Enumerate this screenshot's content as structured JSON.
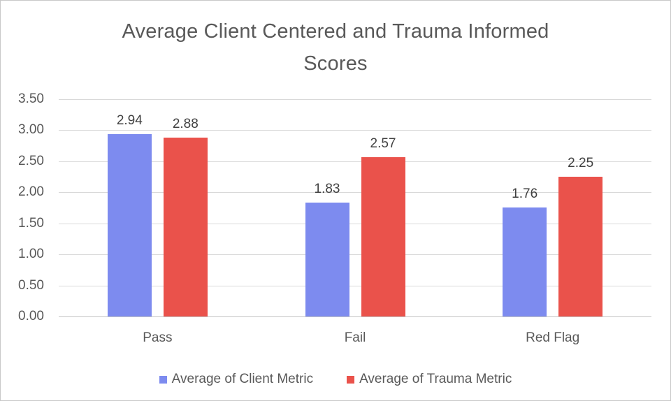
{
  "chart_data": {
    "type": "bar",
    "title": "Average Client Centered and Trauma Informed Scores",
    "categories": [
      "Pass",
      "Fail",
      "Red Flag"
    ],
    "series": [
      {
        "name": "Average of Client Metric",
        "color": "#7D8BEF",
        "values": [
          2.94,
          1.83,
          1.76
        ]
      },
      {
        "name": "Average of Trauma Metric",
        "color": "#EA524B",
        "values": [
          2.88,
          2.57,
          2.25
        ]
      }
    ],
    "data_labels": [
      [
        "2.94",
        "1.83",
        "1.76"
      ],
      [
        "2.88",
        "2.57",
        "2.25"
      ]
    ],
    "xlabel": "",
    "ylabel": "",
    "ylim": [
      0,
      3.5
    ],
    "ytick_values": [
      0,
      0.5,
      1,
      1.5,
      2,
      2.5,
      3,
      3.5
    ],
    "ytick_labels": [
      "0.00",
      "0.50",
      "1.00",
      "1.50",
      "2.00",
      "2.50",
      "3.00",
      "3.50"
    ],
    "grid": true,
    "legend_position": "bottom"
  },
  "colors": {
    "background": "#FFFFFF",
    "border": "#C8C8C8",
    "title_text": "#595959",
    "axis_text": "#595959",
    "data_label_text": "#404040",
    "gridline": "#D9D9D9",
    "axis_line": "#C4C4C4",
    "series_client_blue": "#7D8BEF",
    "series_trauma_red": "#EA524B"
  }
}
